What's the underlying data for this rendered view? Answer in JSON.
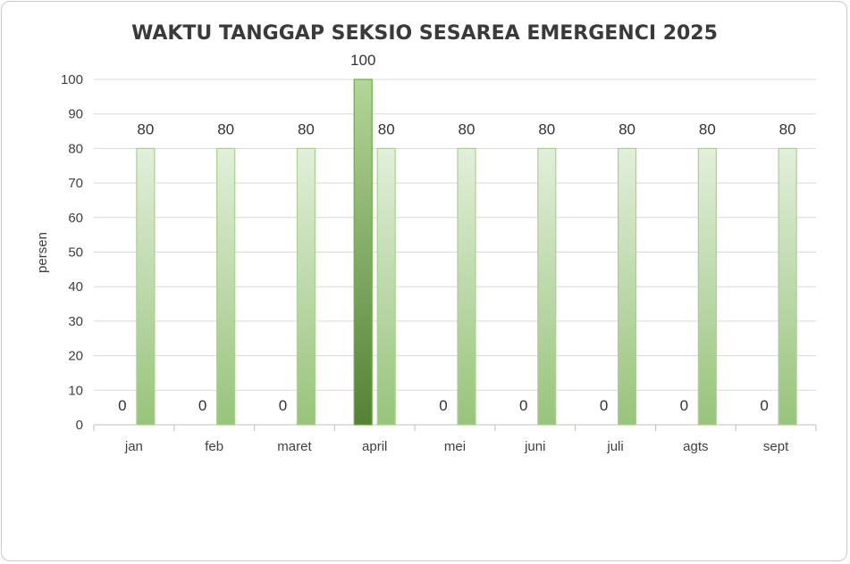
{
  "chart_data": {
    "type": "bar",
    "title": "WAKTU TANGGAP SEKSIO SESAREA EMERGENCI 2025",
    "xlabel": "",
    "ylabel": "persen",
    "categories": [
      "jan",
      "feb",
      "maret",
      "april",
      "mei",
      "juni",
      "juli",
      "agts",
      "sept"
    ],
    "series": [
      {
        "values": [
          0,
          0,
          0,
          100,
          0,
          0,
          0,
          0,
          0
        ],
        "color": "#6fa84e"
      },
      {
        "values": [
          80,
          80,
          80,
          80,
          80,
          80,
          80,
          80,
          80
        ],
        "color": "#a9d18e"
      }
    ],
    "ylim": [
      0,
      100
    ],
    "yticks": [
      0,
      10,
      20,
      30,
      40,
      50,
      60,
      70,
      80,
      90,
      100
    ],
    "grid": true,
    "legend": "none",
    "data_labels": true
  }
}
